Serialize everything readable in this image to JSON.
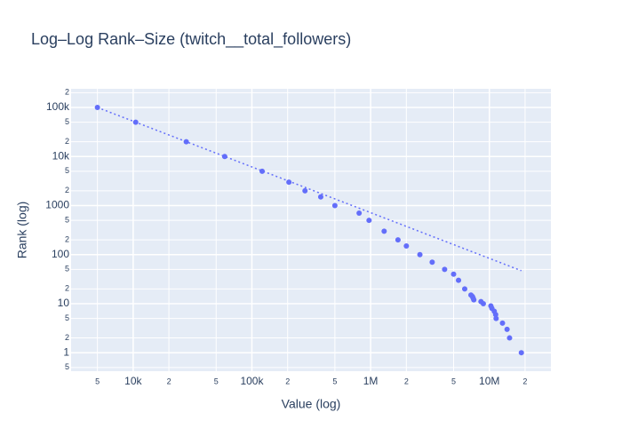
{
  "chart_data": {
    "type": "scatter",
    "title": "Log–Log Rank–Size (twitch__total_followers)",
    "x_label": "Value (log)",
    "y_label": "Rank (log)",
    "x_log": true,
    "y_log": true,
    "grid": true,
    "xlim": [
      3000,
      33000000
    ],
    "ylim": [
      0.42,
      240000
    ],
    "xticks": [
      {
        "value": 5000,
        "label": "5"
      },
      {
        "value": 10000,
        "label": "10k"
      },
      {
        "value": 20000,
        "label": "2"
      },
      {
        "value": 50000,
        "label": "5"
      },
      {
        "value": 100000,
        "label": "100k"
      },
      {
        "value": 200000,
        "label": "2"
      },
      {
        "value": 500000,
        "label": "5"
      },
      {
        "value": 1000000,
        "label": "1M"
      },
      {
        "value": 2000000,
        "label": "2"
      },
      {
        "value": 5000000,
        "label": "5"
      },
      {
        "value": 10000000,
        "label": "10M"
      },
      {
        "value": 20000000,
        "label": "2"
      }
    ],
    "yticks": [
      {
        "value": 0.5,
        "label": "5"
      },
      1,
      2,
      5,
      10,
      {
        "value": 20,
        "label": "2"
      },
      {
        "value": 50,
        "label": "5"
      },
      100,
      {
        "value": 200,
        "label": "2"
      },
      {
        "value": 500,
        "label": "5"
      },
      1000,
      {
        "value": 2000,
        "label": "2"
      },
      {
        "value": 5000,
        "label": "5"
      },
      {
        "value": 10000,
        "label": "10k"
      },
      {
        "value": 20000,
        "label": "2"
      },
      {
        "value": 50000,
        "label": "5"
      },
      {
        "value": 100000,
        "label": "100k"
      },
      {
        "value": 200000,
        "label": "2"
      }
    ],
    "series": [
      {
        "mode": "markers",
        "color": "#636efa",
        "x": [
          18600000,
          14800000,
          14100000,
          12900000,
          11400000,
          11300000,
          11000000,
          10500000,
          10300000,
          8900000,
          8500000,
          7400000,
          7300000,
          7200000,
          7000000,
          6200000,
          5500000,
          5000000,
          4200000,
          3300000,
          2600000,
          2000000,
          1700000,
          1300000,
          970000,
          800000,
          500000,
          380000,
          280000,
          205000,
          122000,
          59000,
          28000,
          10500,
          5000
        ],
        "values": [
          1,
          2,
          3,
          4,
          5,
          6,
          7,
          8,
          9,
          10,
          11,
          12,
          13,
          14,
          15,
          20,
          30,
          40,
          50,
          70,
          100,
          150,
          200,
          300,
          500,
          700,
          1000,
          1500,
          2000,
          3000,
          5000,
          10000,
          20000,
          50000,
          100000
        ]
      },
      {
        "mode": "lines",
        "dash": "dot",
        "color": "#636efa",
        "x": [
          5000,
          18600000
        ],
        "values": [
          100000,
          47
        ]
      }
    ]
  }
}
